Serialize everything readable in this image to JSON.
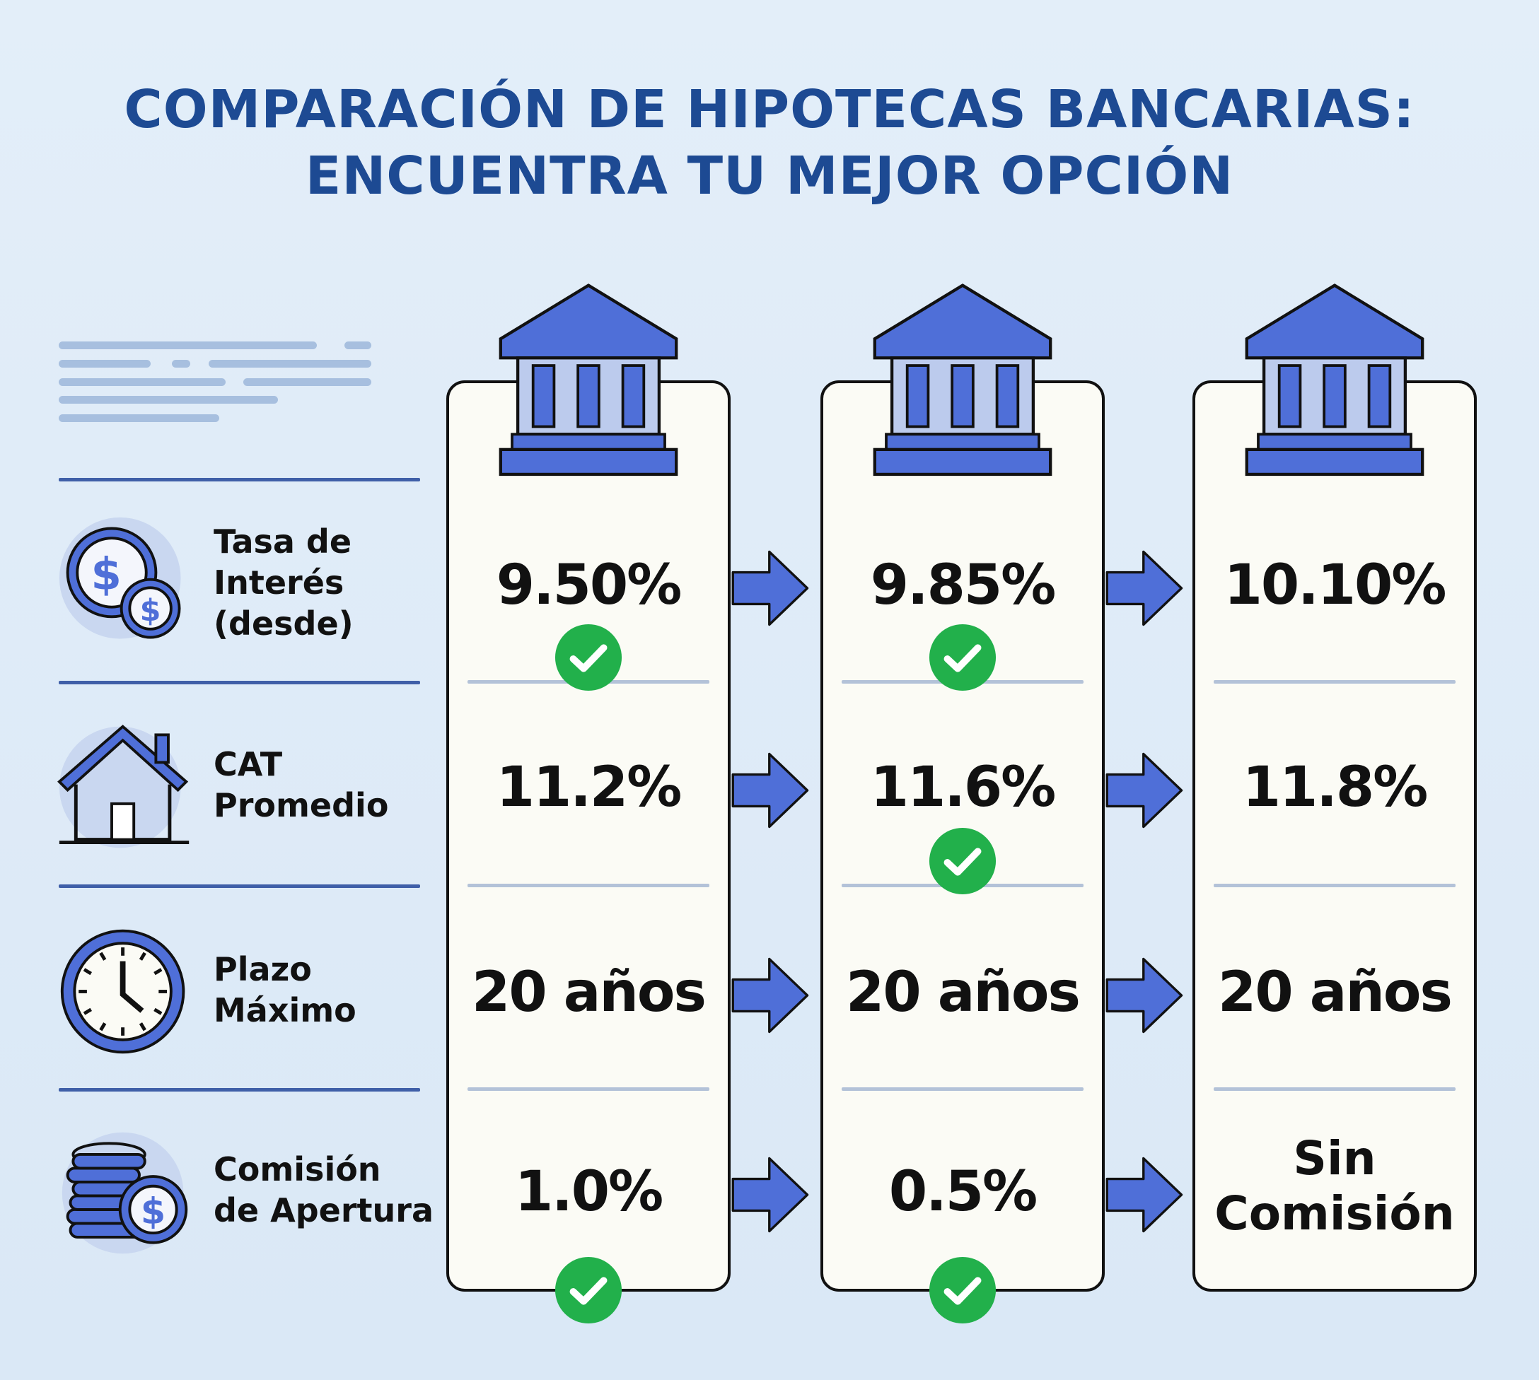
{
  "title": {
    "line1": "COMPARACIÓN DE HIPOTECAS BANCARIAS:",
    "line2": "ENCUENTRA TU MEJOR OPCIÓN"
  },
  "rows": [
    {
      "label": [
        "Tasa de",
        "Interés",
        "(desde)"
      ],
      "icon": "coins-dollar-icon"
    },
    {
      "label": [
        "CAT",
        "Promedio"
      ],
      "icon": "house-icon"
    },
    {
      "label": [
        "Plazo",
        "Máximo"
      ],
      "icon": "clock-icon"
    },
    {
      "label": [
        "Comisión",
        "de Apertura"
      ],
      "icon": "coin-stack-icon"
    }
  ],
  "banks": [
    {
      "values": [
        "9.50%",
        "11.2%",
        "20 años",
        "1.0%"
      ],
      "checks": [
        true,
        false,
        false,
        true
      ]
    },
    {
      "values": [
        "9.85%",
        "11.6%",
        "20 años",
        "0.5%"
      ],
      "checks": [
        true,
        true,
        false,
        true
      ]
    },
    {
      "values": [
        "10.10%",
        "11.8%",
        "20 años",
        [
          "Sin",
          "Comisión"
        ]
      ],
      "checks": [
        false,
        false,
        false,
        false
      ]
    }
  ],
  "colors": {
    "accent": "#4f6fd8",
    "title": "#1d4a93",
    "check": "#22b04b",
    "background": "#dfeaf7"
  }
}
